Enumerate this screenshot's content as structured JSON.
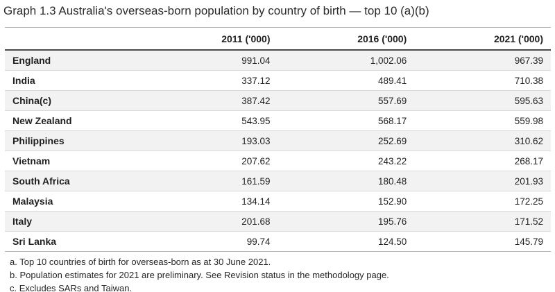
{
  "title": "Graph 1.3 Australia's overseas-born population by country of birth — top 10 (a)(b)",
  "table": {
    "columns": [
      "",
      "2011 ('000)",
      "2016 ('000)",
      "2021 ('000)"
    ],
    "rows": [
      {
        "country": "England",
        "v2011": "991.04",
        "v2016": "1,002.06",
        "v2021": "967.39"
      },
      {
        "country": "India",
        "v2011": "337.12",
        "v2016": "489.41",
        "v2021": "710.38"
      },
      {
        "country": "China(c)",
        "v2011": "387.42",
        "v2016": "557.69",
        "v2021": "595.63"
      },
      {
        "country": "New Zealand",
        "v2011": "543.95",
        "v2016": "568.17",
        "v2021": "559.98"
      },
      {
        "country": "Philippines",
        "v2011": "193.03",
        "v2016": "252.69",
        "v2021": "310.62"
      },
      {
        "country": "Vietnam",
        "v2011": "207.62",
        "v2016": "243.22",
        "v2021": "268.17"
      },
      {
        "country": "South Africa",
        "v2011": "161.59",
        "v2016": "180.48",
        "v2021": "201.93"
      },
      {
        "country": "Malaysia",
        "v2011": "134.14",
        "v2016": "152.90",
        "v2021": "172.25"
      },
      {
        "country": "Italy",
        "v2011": "201.68",
        "v2016": "195.76",
        "v2021": "171.52"
      },
      {
        "country": "Sri Lanka",
        "v2011": "99.74",
        "v2016": "124.50",
        "v2021": "145.79"
      }
    ]
  },
  "footnotes": [
    "a. Top 10 countries of birth for overseas-born as at 30 June 2021.",
    "b. Population estimates for 2021 are preliminary. See Revision status in the methodology page.",
    "c. Excludes SARs and Taiwan."
  ],
  "colors": {
    "text": "#1f1f1f",
    "row_stripe": "#f2f2f2",
    "header_rule": "#4a4a4a",
    "outer_rule": "#b1b1b1",
    "row_separator": "#d9d9d9"
  },
  "chart_data": {
    "type": "table",
    "title": "Graph 1.3 Australia's overseas-born population by country of birth — top 10 (a)(b)",
    "categories": [
      "England",
      "India",
      "China(c)",
      "New Zealand",
      "Philippines",
      "Vietnam",
      "South Africa",
      "Malaysia",
      "Italy",
      "Sri Lanka"
    ],
    "series": [
      {
        "name": "2011 ('000)",
        "values": [
          991.04,
          337.12,
          387.42,
          543.95,
          193.03,
          207.62,
          161.59,
          134.14,
          201.68,
          99.74
        ]
      },
      {
        "name": "2016 ('000)",
        "values": [
          1002.06,
          489.41,
          557.69,
          568.17,
          252.69,
          243.22,
          180.48,
          152.9,
          195.76,
          124.5
        ]
      },
      {
        "name": "2021 ('000)",
        "values": [
          967.39,
          710.38,
          595.63,
          559.98,
          310.62,
          268.17,
          201.93,
          172.25,
          171.52,
          145.79
        ]
      }
    ],
    "units": "thousands of persons",
    "footnotes": [
      "a. Top 10 countries of birth for overseas-born as at 30 June 2021.",
      "b. Population estimates for 2021 are preliminary. See Revision status in the methodology page.",
      "c. Excludes SARs and Taiwan."
    ]
  }
}
